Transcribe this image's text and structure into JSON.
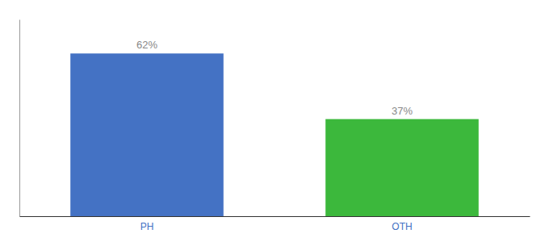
{
  "chart_data": {
    "type": "bar",
    "categories": [
      "PH",
      "OTH"
    ],
    "values": [
      62,
      37
    ],
    "value_labels": [
      "62%",
      "37%"
    ],
    "colors": [
      "#4472c4",
      "#3cb83c"
    ],
    "ylim": [
      0,
      75
    ],
    "grid": false,
    "data_labels": true,
    "tick_labels": "x"
  }
}
